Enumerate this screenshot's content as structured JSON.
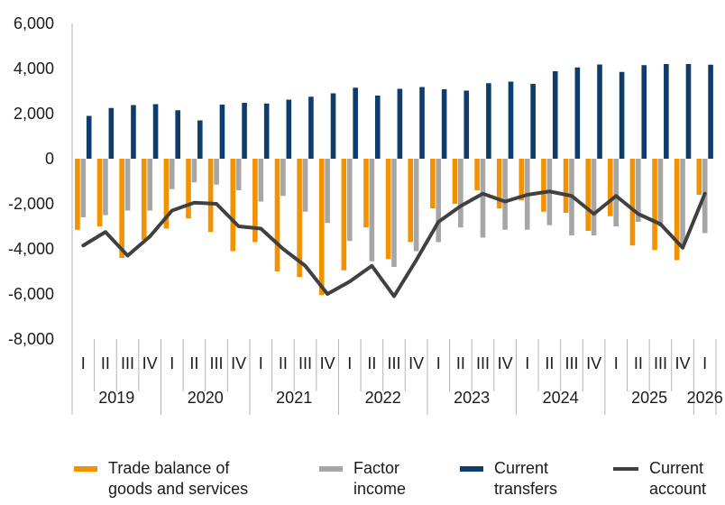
{
  "chart_data": {
    "type": "bar+line",
    "ylim": [
      -8000,
      6000
    ],
    "yticks": [
      -8000,
      -6000,
      -4000,
      -2000,
      0,
      2000,
      4000,
      6000
    ],
    "ytick_labels": [
      "-8,000",
      "-6,000",
      "-4,000",
      "-2,000",
      "0",
      "2,000",
      "4,000",
      "6,000"
    ],
    "grid": false,
    "legend_position": "bottom",
    "categories": [
      "I",
      "II",
      "III",
      "IV",
      "I",
      "II",
      "III",
      "IV",
      "I",
      "II",
      "III",
      "IV",
      "I",
      "II",
      "III",
      "IV",
      "I",
      "II",
      "III",
      "IV",
      "I",
      "II",
      "III",
      "IV",
      "I",
      "II",
      "III",
      "IV",
      "I"
    ],
    "years": [
      {
        "label": "2019",
        "quarters": 4
      },
      {
        "label": "2020",
        "quarters": 4
      },
      {
        "label": "2021",
        "quarters": 4
      },
      {
        "label": "2022",
        "quarters": 4
      },
      {
        "label": "2023",
        "quarters": 4
      },
      {
        "label": "2024",
        "quarters": 4
      },
      {
        "label": "2025",
        "quarters": 4
      },
      {
        "label": "2026",
        "quarters": 1
      }
    ],
    "series": [
      {
        "name": "Trade balance of goods and services",
        "type": "bar",
        "color": "#f39200",
        "values": [
          -3150,
          -3000,
          -4400,
          -3600,
          -3100,
          -2650,
          -3250,
          -4100,
          -3700,
          -5000,
          -5250,
          -6050,
          -4950,
          -3050,
          -4450,
          -3700,
          -2200,
          -2000,
          -1400,
          -2200,
          -1850,
          -2350,
          -2400,
          -3200,
          -2550,
          -3850,
          -4050,
          -4500,
          -1600
        ]
      },
      {
        "name": "Factor income",
        "type": "bar",
        "color": "#a6a6a6",
        "values": [
          -2600,
          -2500,
          -2300,
          -2300,
          -1350,
          -1050,
          -1150,
          -1400,
          -1900,
          -1650,
          -2350,
          -2850,
          -3650,
          -4550,
          -4800,
          -4100,
          -3700,
          -3050,
          -3500,
          -3150,
          -3150,
          -2950,
          -3400,
          -3400,
          -3000,
          -2800,
          -3000,
          -3850,
          -3300
        ]
      },
      {
        "name": "Current transfers",
        "type": "bar",
        "color": "#0e3c6b",
        "values": [
          1900,
          2250,
          2380,
          2420,
          2150,
          1700,
          2400,
          2480,
          2450,
          2620,
          2750,
          2900,
          3150,
          2800,
          3100,
          3180,
          3080,
          3020,
          3350,
          3420,
          3320,
          3880,
          4050,
          4180,
          3850,
          4150,
          4200,
          4200,
          4170
        ]
      },
      {
        "name": "Current account",
        "type": "line",
        "color": "#404040",
        "values": [
          -3850,
          -3250,
          -4300,
          -3450,
          -2300,
          -1950,
          -2000,
          -3000,
          -3100,
          -4000,
          -4750,
          -6000,
          -5450,
          -4750,
          -6100,
          -4500,
          -2800,
          -2100,
          -1550,
          -1900,
          -1600,
          -1450,
          -1650,
          -2450,
          -1650,
          -2450,
          -2900,
          -3950,
          -1550
        ]
      }
    ]
  },
  "legend": {
    "items": [
      {
        "label": "Trade balance of\ngoods and services",
        "color": "#f39200",
        "kind": "bar"
      },
      {
        "label": "Factor\nincome",
        "color": "#a6a6a6",
        "kind": "bar"
      },
      {
        "label": "Current\ntransfers",
        "color": "#0e3c6b",
        "kind": "bar"
      },
      {
        "label": "Current\naccount",
        "color": "#404040",
        "kind": "line"
      }
    ]
  }
}
